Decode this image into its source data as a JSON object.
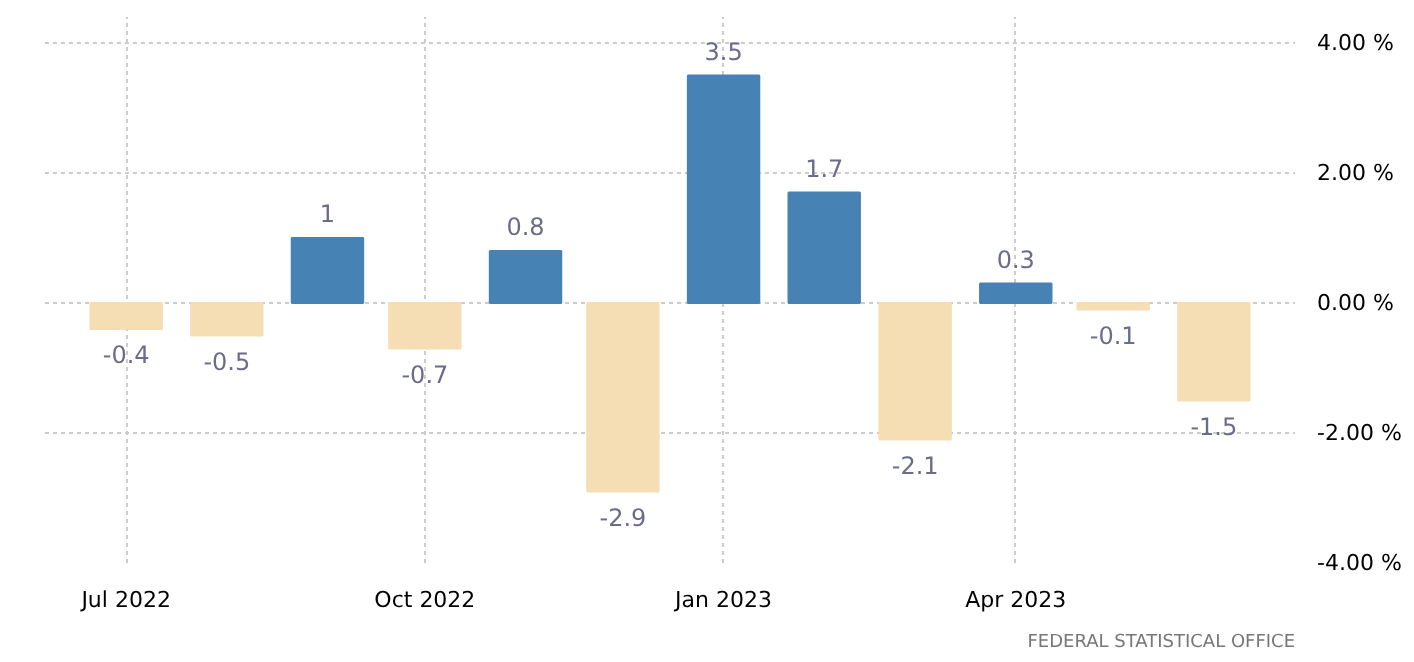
{
  "chart_data": {
    "type": "bar",
    "x": [
      "2022-07",
      "2022-08",
      "2022-09",
      "2022-10",
      "2022-11",
      "2022-12",
      "2023-01",
      "2023-02",
      "2023-03",
      "2023-04",
      "2023-05",
      "2023-06"
    ],
    "values": [
      -0.4,
      -0.5,
      1,
      -0.7,
      0.8,
      -2.9,
      3.5,
      1.7,
      -2.1,
      0.3,
      -0.1,
      -1.5
    ],
    "colors": [
      "#f5deb3",
      "#f5deb3",
      "#4682b4",
      "#f5deb3",
      "#4682b4",
      "#f5deb3",
      "#4682b4",
      "#4682b4",
      "#f5deb3",
      "#4682b4",
      "#f5deb3",
      "#f5deb3"
    ],
    "data_labels": true,
    "xlim": [
      "2022-06-06",
      "2023-06-26"
    ],
    "xticks": [
      {
        "value": "2022-07",
        "label": "Jul 2022"
      },
      {
        "value": "2022-10",
        "label": "Oct 2022"
      },
      {
        "value": "2023-01",
        "label": "Jan 2023"
      },
      {
        "value": "2023-04",
        "label": "Apr 2023"
      }
    ],
    "ylim": [
      -4,
      4.4
    ],
    "yticks": [
      {
        "value": -4,
        "label": "-4.00 %"
      },
      {
        "value": -2,
        "label": "-2.00 %"
      },
      {
        "value": 0,
        "label": "0.00 %"
      },
      {
        "value": 2,
        "label": "2.00 %"
      },
      {
        "value": 4,
        "label": "4.00 %"
      }
    ],
    "grid": true,
    "annotations": [
      "FEDERAL STATISTICAL OFFICE"
    ]
  }
}
